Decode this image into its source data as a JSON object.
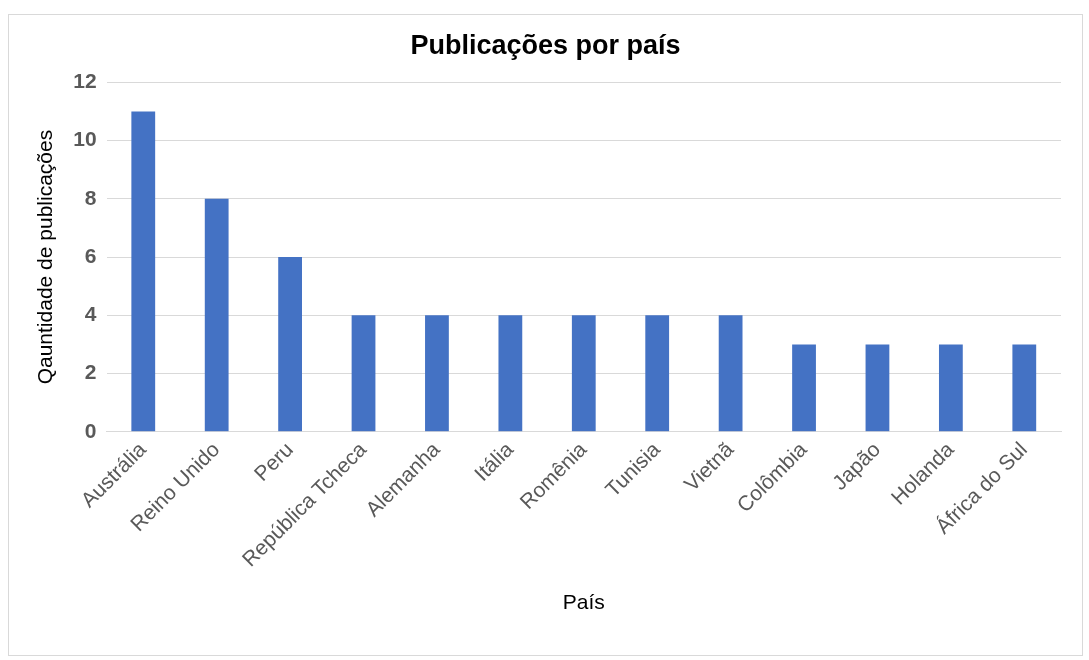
{
  "chart_data": {
    "type": "bar",
    "title": "Publicações por país",
    "xlabel": "País",
    "ylabel": "Qauntidade de publicações",
    "categories": [
      "Austrália",
      "Reino Unido",
      "Peru",
      "República Tcheca",
      "Alemanha",
      "Itália",
      "Romênia",
      "Tunisia",
      "Vietnã",
      "Colômbia",
      "Japão",
      "Holanda",
      "África do Sul"
    ],
    "values": [
      11,
      8,
      6,
      4,
      4,
      4,
      4,
      4,
      4,
      3,
      3,
      3,
      3
    ],
    "color": "#4472c4",
    "ylim": [
      0,
      12
    ],
    "yticks": [
      0,
      2,
      4,
      6,
      8,
      10,
      12
    ],
    "grid": "y",
    "legend": false
  }
}
